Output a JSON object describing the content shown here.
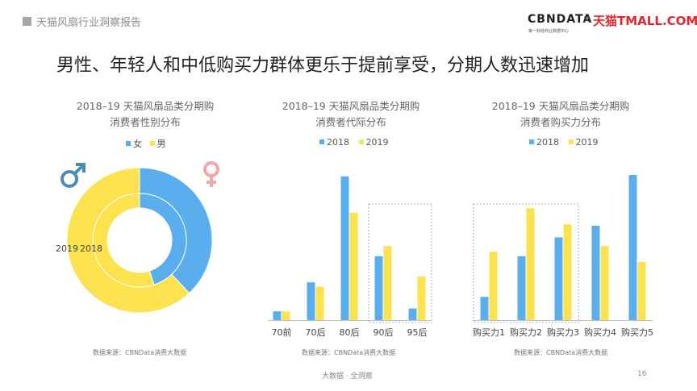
{
  "header": {
    "title": "天猫风扇行业洞察报告"
  },
  "logo": {
    "brand": "CBNDATA",
    "tagline": "第一财经商业数据中心",
    "separator": "×",
    "partner": "天猫TMALL.COM"
  },
  "headline": "男性、年轻人和中低购买力群体更乐于提前享受，分期人数迅速增加",
  "colors": {
    "blue": "#5aaeee",
    "yellow": "#fde24f",
    "highlight_border": "#7fc1ea",
    "male_icon": "#4a8db0",
    "female_icon": "#f0a8a8"
  },
  "panels": [
    {
      "title_line1": "2018–19 天猫风扇品类分期购",
      "title_line2": "消费者性别分布",
      "legend": [
        "女",
        "男"
      ],
      "source": "数据来源：CBNData消费大数据"
    },
    {
      "title_line1": "2018–19 天猫风扇品类分期购",
      "title_line2": "消费者代际分布",
      "legend": [
        "2018",
        "2019"
      ],
      "source": "数据来源：CBNData消费大数据"
    },
    {
      "title_line1": "2018–19 天猫风扇品类分期购",
      "title_line2": "消费者购买力分布",
      "legend": [
        "2018",
        "2019"
      ],
      "source": "数据来源：CBNData消费大数据"
    }
  ],
  "footer": {
    "text": "大数据 · 全洞察",
    "page": "16"
  },
  "chart_data": [
    {
      "type": "pie",
      "title": "2018–19 天猫风扇品类分期购消费者性别分布",
      "categories": [
        "女",
        "男"
      ],
      "series": [
        {
          "name": "2019",
          "values": [
            0.38,
            0.62
          ]
        },
        {
          "name": "2018",
          "values": [
            0.45,
            0.55
          ]
        }
      ],
      "ring_labels": [
        "2019",
        "2018"
      ],
      "icons": [
        "male-symbol",
        "female-symbol"
      ],
      "legend_position": "top"
    },
    {
      "type": "bar",
      "title": "2018–19 天猫风扇品类分期购消费者代际分布",
      "categories": [
        "70前",
        "70后",
        "80后",
        "90后",
        "95后"
      ],
      "series": [
        {
          "name": "2018",
          "values": [
            0.06,
            0.26,
            0.99,
            0.44,
            0.08
          ]
        },
        {
          "name": "2019",
          "values": [
            0.06,
            0.23,
            0.74,
            0.51,
            0.3
          ]
        }
      ],
      "ylim": [
        0,
        1
      ],
      "highlight": [
        "90后",
        "95后"
      ],
      "legend_position": "top",
      "grid": false
    },
    {
      "type": "bar",
      "title": "2018–19 天猫风扇品类分期购消费者购买力分布",
      "categories": [
        "购买力1",
        "购买力2",
        "购买力3",
        "购买力4",
        "购买力5"
      ],
      "series": [
        {
          "name": "2018",
          "values": [
            0.16,
            0.44,
            0.57,
            0.65,
            1.0
          ]
        },
        {
          "name": "2019",
          "values": [
            0.47,
            0.77,
            0.66,
            0.51,
            0.4
          ]
        }
      ],
      "ylim": [
        0,
        1
      ],
      "highlight": [
        "购买力1",
        "购买力2",
        "购买力3"
      ],
      "legend_position": "top",
      "grid": false
    }
  ]
}
